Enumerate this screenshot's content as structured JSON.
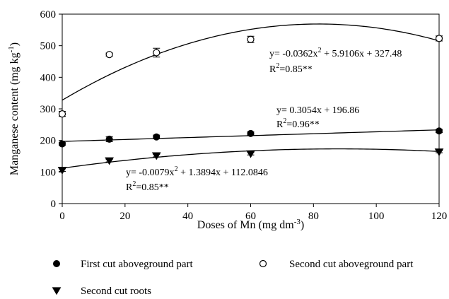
{
  "chart_data": {
    "type": "scatter",
    "xlabel_main": "Doses of  Mn (mg dm",
    "xlabel_sup": "-3",
    "xlabel_end": ")",
    "ylabel_main": "Manganese content (mg kg",
    "ylabel_sup": "-1",
    "ylabel_end": ")",
    "xlim": [
      0,
      120
    ],
    "ylim": [
      0,
      600
    ],
    "xticks": [
      0,
      20,
      40,
      60,
      80,
      100,
      120
    ],
    "yticks": [
      0,
      100,
      200,
      300,
      400,
      500,
      600
    ],
    "grid": false,
    "legend_position": "bottom",
    "series": [
      {
        "name": "First cut aboveground part",
        "marker": "filled-circle",
        "x": [
          0,
          15,
          30,
          60,
          120
        ],
        "y": [
          189,
          204,
          211,
          222,
          230
        ],
        "err": [
          4,
          8,
          6,
          5,
          5
        ],
        "fit": {
          "a": 0,
          "b": 0.3054,
          "c": 196.86
        }
      },
      {
        "name": "Second cut aboveground part",
        "marker": "open-circle",
        "x": [
          0,
          15,
          30,
          60,
          120
        ],
        "y": [
          284,
          472,
          478,
          520,
          523
        ],
        "err": [
          8,
          5,
          14,
          10,
          8
        ],
        "fit": {
          "a": -0.0362,
          "b": 5.9106,
          "c": 327.48
        }
      },
      {
        "name": "Second cut roots",
        "marker": "filled-triangle",
        "x": [
          0,
          15,
          30,
          60,
          120
        ],
        "y": [
          106,
          136,
          152,
          158,
          164
        ],
        "err": [
          4,
          4,
          4,
          4,
          3
        ],
        "fit": {
          "a": -0.0079,
          "b": 1.3894,
          "c": 112.0846
        }
      }
    ],
    "annotations": [
      {
        "series": 1,
        "eq_pre": "y= -0.0362x",
        "eq_sup": "2",
        "eq_post": " + 5.9106x + 327.48",
        "r2": "=0.85**"
      },
      {
        "series": 0,
        "eq_pre": "y= 0.3054x + 196.86",
        "eq_sup": "",
        "eq_post": "",
        "r2": "=0.96**"
      },
      {
        "series": 2,
        "eq_pre": "y= -0.0079x",
        "eq_sup": "2",
        "eq_post": " + 1.3894x + 112.0846",
        "r2": "=0.85**"
      }
    ]
  }
}
